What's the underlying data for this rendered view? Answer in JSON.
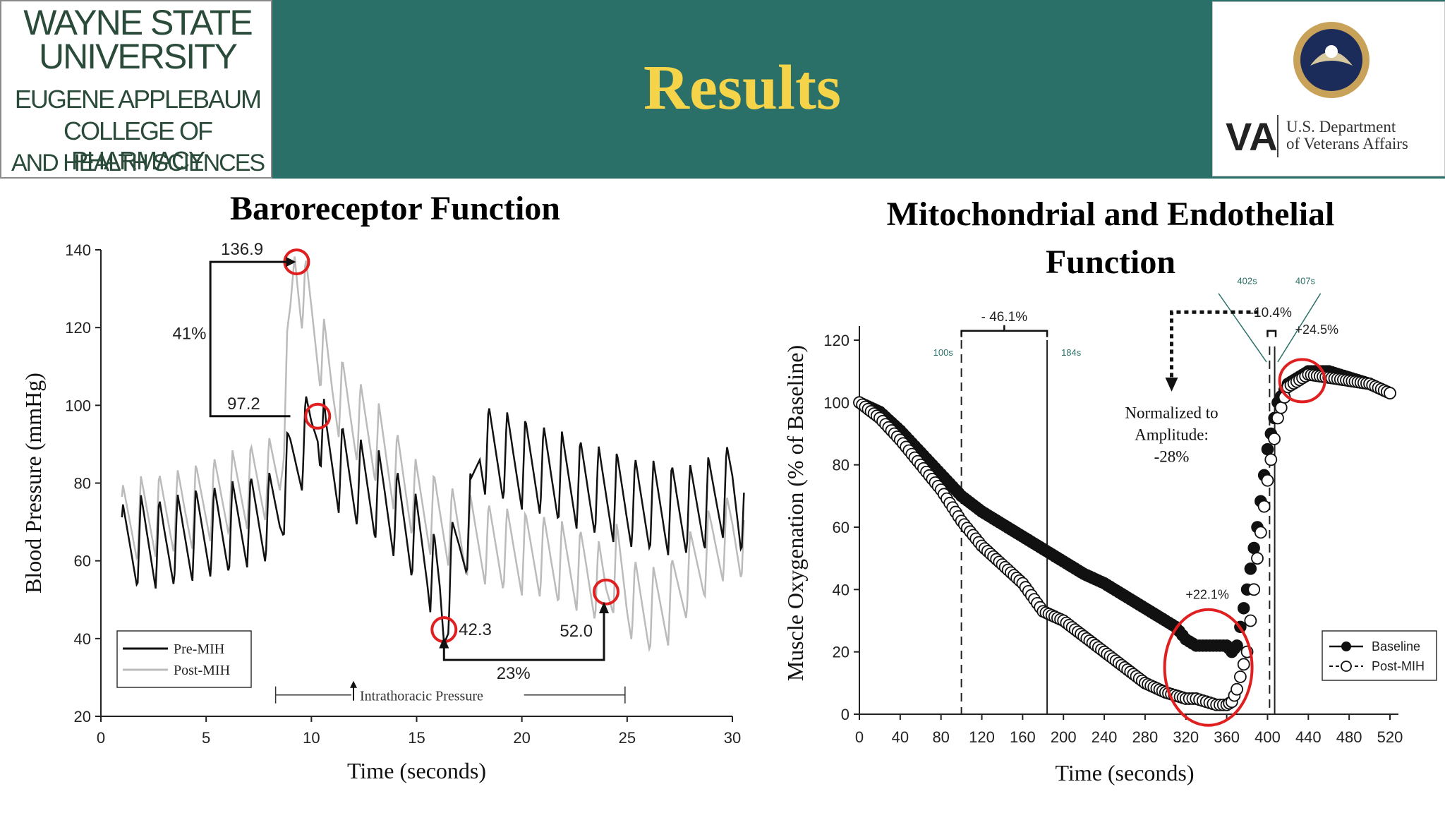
{
  "header": {
    "title": "Results",
    "left_logo_lines": [
      "WAYNE STATE",
      "UNIVERSITY",
      "EUGENE APPLEBAUM",
      "COLLEGE OF PHARMACY",
      "AND HEALTH SCIENCES"
    ],
    "right_logo": {
      "mark": "VA",
      "line1": "U.S. Department",
      "line2": "of Veterans Affairs"
    }
  },
  "colors": {
    "header_bg": "#2a7068",
    "title": "#f6d44a",
    "highlight": "#e02020",
    "post_series": "#bbbbbb",
    "pre_series": "#111111",
    "vline": "#2a7068"
  },
  "chart_data": [
    {
      "type": "line",
      "title": "Baroreceptor Function",
      "xlabel": "Time (seconds)",
      "ylabel": "Blood Pressure (mmHg)",
      "xlim": [
        0,
        30
      ],
      "ylim": [
        20,
        140
      ],
      "xticks": [
        0,
        5,
        10,
        15,
        20,
        25,
        30
      ],
      "yticks": [
        20,
        40,
        60,
        80,
        100,
        120,
        140
      ],
      "legend": {
        "position": "bottom-left",
        "entries": [
          "Pre-MIH",
          "Post-MIH"
        ]
      },
      "series": [
        {
          "name": "Pre-MIH",
          "color": "#111111",
          "x": [
            1.0,
            2.0,
            3.0,
            4.0,
            5.0,
            6.0,
            7.0,
            8.0,
            8.5,
            9.0,
            9.5,
            10.0,
            10.3,
            10.7,
            11.5,
            12.5,
            13.5,
            14.5,
            15.5,
            16.1,
            16.3,
            16.6,
            17.0,
            17.3,
            17.6,
            18.0,
            19.0,
            20.0,
            21.0,
            22.0,
            23.0,
            24.0,
            25.0,
            26.0,
            27.0,
            28.0,
            29.0,
            30.0,
            30.6
          ],
          "values": [
            62,
            64,
            63,
            65,
            66,
            67,
            69,
            70,
            73,
            83,
            88,
            92,
            97,
            86,
            82,
            78,
            74,
            68,
            60,
            50,
            42,
            56,
            62,
            66,
            70,
            88,
            86,
            84,
            82,
            80,
            78,
            76,
            74,
            73,
            72,
            72,
            74,
            78,
            70
          ]
        },
        {
          "name": "Post-MIH",
          "color": "#bbbbbb",
          "x": [
            1.0,
            2.0,
            3.0,
            4.0,
            5.0,
            6.0,
            7.0,
            8.0,
            8.5,
            9.0,
            9.2,
            9.5,
            10.0,
            10.5,
            11.0,
            12.0,
            13.0,
            14.0,
            15.0,
            16.0,
            17.0,
            18.0,
            19.0,
            20.0,
            21.0,
            22.0,
            23.0,
            24.0,
            24.5,
            25.0,
            26.0,
            27.0,
            28.0,
            29.0,
            30.0,
            30.6
          ],
          "values": [
            68,
            70,
            71,
            72,
            74,
            76,
            78,
            80,
            82,
            118,
            136.9,
            130,
            122,
            112,
            104,
            96,
            90,
            82,
            74,
            70,
            66,
            64,
            62,
            61,
            60,
            58,
            56,
            52,
            58,
            50,
            46,
            48,
            56,
            62,
            66,
            64
          ]
        }
      ],
      "annotations": [
        {
          "text": "136.9",
          "x": 9.3,
          "y": 136.9
        },
        {
          "text": "97.2",
          "x": 10.3,
          "y": 97.2
        },
        {
          "text": "41%"
        },
        {
          "text": "42.3",
          "x": 16.3,
          "y": 42.3
        },
        {
          "text": "52.0",
          "x": 24.0,
          "y": 52.0
        },
        {
          "text": "23%"
        },
        {
          "text": "Intrathoracic Pressure"
        }
      ]
    },
    {
      "type": "scatter",
      "title": "Mitochondrial and Endothelial Function",
      "xlabel": "Time (seconds)",
      "ylabel": "Muscle Oxygenation (% of Baseline)",
      "xlim": [
        0,
        520
      ],
      "ylim": [
        0,
        120
      ],
      "xticks": [
        0,
        40,
        80,
        120,
        160,
        200,
        240,
        280,
        320,
        360,
        400,
        440,
        480,
        520
      ],
      "yticks": [
        0,
        20,
        40,
        60,
        80,
        100,
        120
      ],
      "legend": {
        "position": "bottom-right",
        "entries": [
          "Baseline",
          "Post-MIH"
        ]
      },
      "series": [
        {
          "name": "Baseline",
          "marker": "filled-circle",
          "x": [
            0,
            20,
            40,
            60,
            80,
            100,
            120,
            140,
            160,
            180,
            200,
            220,
            240,
            260,
            280,
            300,
            310,
            320,
            330,
            340,
            350,
            360,
            365,
            370,
            380,
            390,
            400,
            410,
            420,
            440,
            460,
            480,
            500,
            520
          ],
          "values": [
            100,
            97,
            91,
            84,
            77,
            70,
            65,
            61,
            57,
            53,
            49,
            45,
            42,
            38,
            34,
            30,
            28,
            24,
            22,
            22,
            22,
            22,
            20,
            22,
            40,
            60,
            85,
            100,
            106,
            110,
            110,
            108,
            106,
            103
          ]
        },
        {
          "name": "Post-MIH",
          "marker": "open-circle",
          "x": [
            0,
            20,
            40,
            60,
            80,
            100,
            120,
            140,
            160,
            180,
            200,
            220,
            240,
            260,
            280,
            300,
            320,
            330,
            340,
            350,
            360,
            365,
            370,
            380,
            390,
            400,
            410,
            420,
            440,
            460,
            480,
            500,
            520
          ],
          "values": [
            100,
            95,
            88,
            80,
            72,
            62,
            54,
            48,
            42,
            33,
            30,
            25,
            20,
            15,
            10,
            7,
            5,
            5,
            4,
            3,
            3,
            4,
            8,
            20,
            50,
            75,
            95,
            105,
            109,
            108,
            107,
            106,
            103
          ]
        }
      ],
      "vlines": [
        {
          "x": 100,
          "label": "100s",
          "style": "dashed"
        },
        {
          "x": 184,
          "label": "184s",
          "style": "solid"
        },
        {
          "x": 402,
          "label": "402s",
          "style": "dashed"
        },
        {
          "x": 407,
          "label": "407s",
          "style": "solid"
        }
      ],
      "annotations": [
        {
          "text": "- 46.1%"
        },
        {
          "text": "-10.4%"
        },
        {
          "text": "+24.5%"
        },
        {
          "text": "+22.1%"
        },
        {
          "text": "Normalized to"
        },
        {
          "text": "Amplitude:"
        },
        {
          "text": "-28%"
        }
      ]
    }
  ]
}
